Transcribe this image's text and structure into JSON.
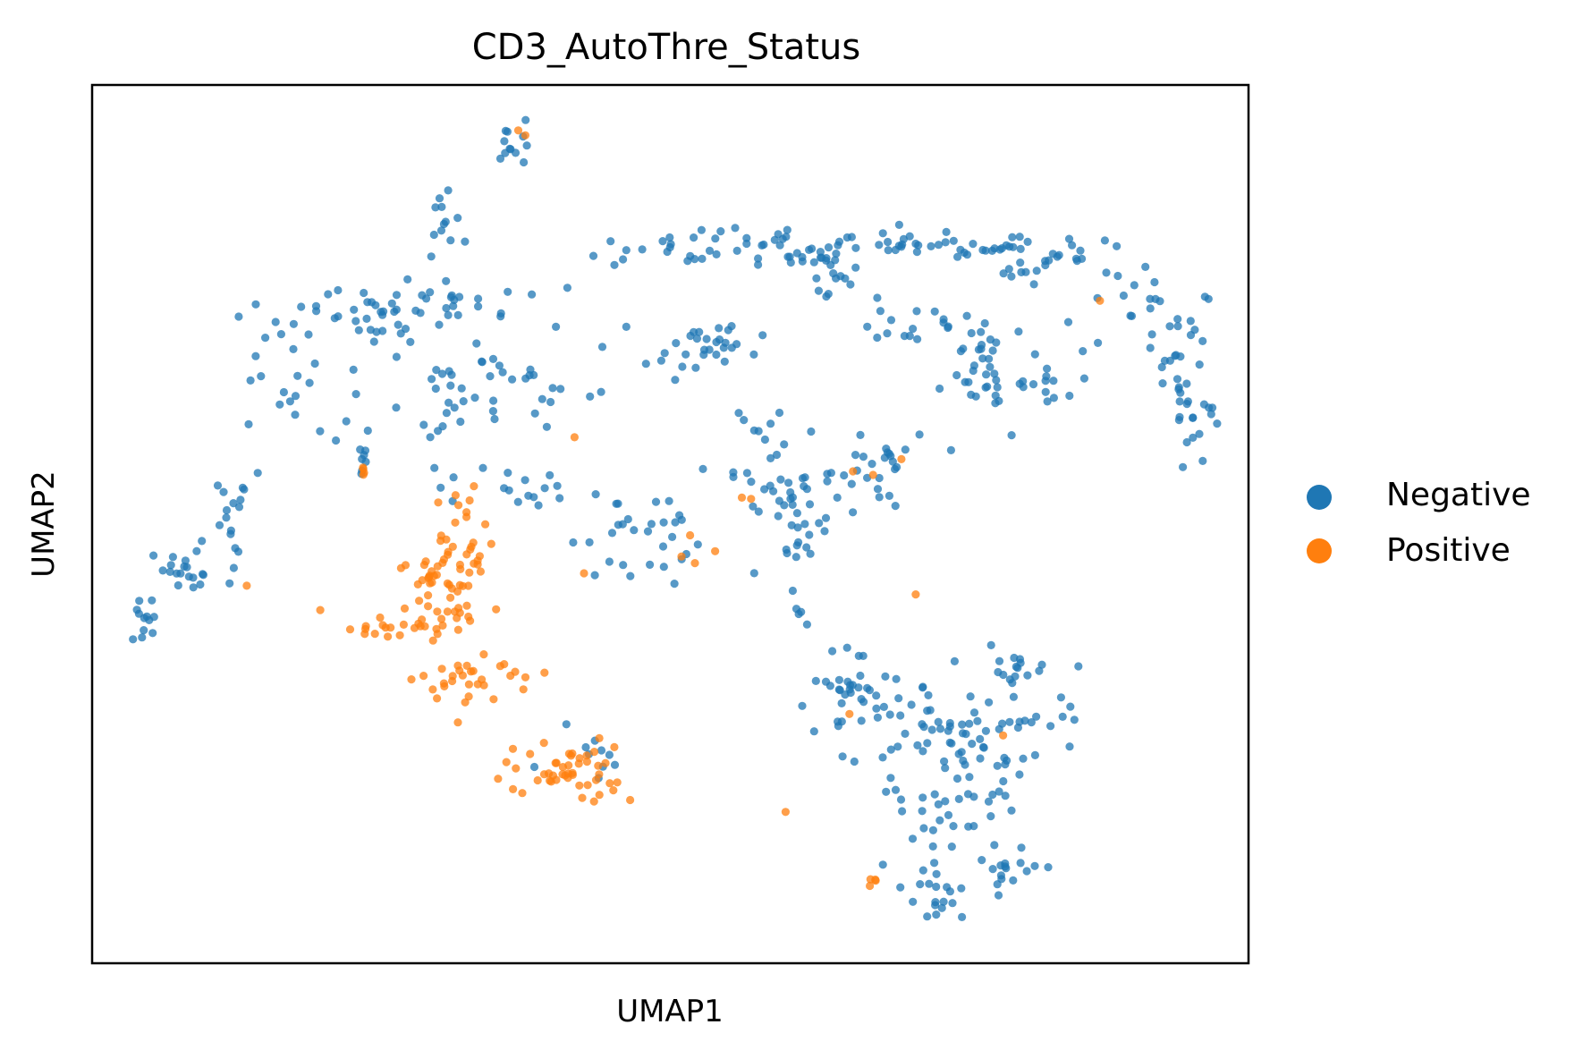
{
  "chart_data": {
    "type": "scatter",
    "title": "CD3_AutoThre_Status",
    "xlabel": "UMAP1",
    "ylabel": "UMAP2",
    "xlim": [
      0,
      100
    ],
    "ylim": [
      0,
      100
    ],
    "axis_ticks": false,
    "grid": false,
    "legend_position": "right",
    "series": [
      {
        "name": "Negative",
        "color": "#1f77b4",
        "clusters": [
          {
            "center": [
              4.8,
              39.0
            ],
            "spread": [
              1.0,
              1.4
            ],
            "n": 12
          },
          {
            "center": [
              7.5,
              44.5
            ],
            "spread": [
              2.0,
              1.2
            ],
            "n": 20
          },
          {
            "center": [
              12.5,
              50.0
            ],
            "spread": [
              0.9,
              3.0
            ],
            "n": 16
          },
          {
            "center": [
              17.0,
              68.0
            ],
            "spread": [
              2.5,
              4.0
            ],
            "n": 26
          },
          {
            "center": [
              24.0,
              72.5
            ],
            "spread": [
              2.5,
              1.8
            ],
            "n": 26
          },
          {
            "center": [
              31.0,
              75.5
            ],
            "spread": [
              3.8,
              1.2
            ],
            "n": 26
          },
          {
            "center": [
              31.5,
              64.0
            ],
            "spread": [
              1.6,
              5.5
            ],
            "n": 26
          },
          {
            "center": [
              30.5,
              84.5
            ],
            "spread": [
              1.2,
              2.0
            ],
            "n": 12
          },
          {
            "center": [
              36.5,
              93.0
            ],
            "spread": [
              0.7,
              1.5
            ],
            "n": 12
          },
          {
            "center": [
              23.5,
              58.5
            ],
            "spread": [
              0.4,
              2.0
            ],
            "n": 8
          },
          {
            "center": [
              38.5,
              54.5
            ],
            "spread": [
              1.8,
              1.2
            ],
            "n": 12
          },
          {
            "center": [
              38.0,
              66.0
            ],
            "spread": [
              3.0,
              3.5
            ],
            "n": 24
          },
          {
            "center": [
              46.5,
              49.0
            ],
            "spread": [
              2.5,
              3.0
            ],
            "n": 30
          },
          {
            "center": [
              53.0,
              70.0
            ],
            "spread": [
              2.5,
              1.5
            ],
            "n": 30
          },
          {
            "center": [
              53.5,
              81.5
            ],
            "spread": [
              6.0,
              1.0
            ],
            "n": 34
          },
          {
            "center": [
              60.5,
              81.0
            ],
            "spread": [
              4.0,
              1.0
            ],
            "n": 20
          },
          {
            "center": [
              64.0,
              78.0
            ],
            "spread": [
              1.5,
              2.0
            ],
            "n": 16
          },
          {
            "center": [
              59.0,
              56.0
            ],
            "spread": [
              2.5,
              4.0
            ],
            "n": 34
          },
          {
            "center": [
              61.0,
              49.0
            ],
            "spread": [
              1.5,
              3.5
            ],
            "n": 24
          },
          {
            "center": [
              67.0,
              56.0
            ],
            "spread": [
              2.5,
              2.5
            ],
            "n": 26
          },
          {
            "center": [
              71.0,
              82.0
            ],
            "spread": [
              3.0,
              0.7
            ],
            "n": 18
          },
          {
            "center": [
              77.0,
              81.5
            ],
            "spread": [
              3.0,
              0.8
            ],
            "n": 18
          },
          {
            "center": [
              83.0,
              80.0
            ],
            "spread": [
              3.0,
              1.2
            ],
            "n": 22
          },
          {
            "center": [
              90.0,
              75.5
            ],
            "spread": [
              2.5,
              2.0
            ],
            "n": 18
          },
          {
            "center": [
              94.0,
              69.0
            ],
            "spread": [
              1.2,
              3.0
            ],
            "n": 20
          },
          {
            "center": [
              95.5,
              62.5
            ],
            "spread": [
              1.0,
              2.0
            ],
            "n": 18
          },
          {
            "center": [
              72.5,
              72.0
            ],
            "spread": [
              3.0,
              1.2
            ],
            "n": 18
          },
          {
            "center": [
              77.5,
              69.5
            ],
            "spread": [
              2.5,
              2.0
            ],
            "n": 16
          },
          {
            "center": [
              82.0,
              66.5
            ],
            "spread": [
              2.5,
              2.5
            ],
            "n": 20
          },
          {
            "center": [
              76.5,
              64.5
            ],
            "spread": [
              1.5,
              1.2
            ],
            "n": 10
          },
          {
            "center": [
              64.5,
              30.0
            ],
            "spread": [
              1.8,
              3.0
            ],
            "n": 22
          },
          {
            "center": [
              68.0,
              28.0
            ],
            "spread": [
              3.0,
              2.5
            ],
            "n": 28
          },
          {
            "center": [
              73.5,
              24.5
            ],
            "spread": [
              4.0,
              3.0
            ],
            "n": 34
          },
          {
            "center": [
              79.0,
              25.0
            ],
            "spread": [
              3.5,
              3.5
            ],
            "n": 30
          },
          {
            "center": [
              80.0,
              34.0
            ],
            "spread": [
              2.5,
              1.5
            ],
            "n": 18
          },
          {
            "center": [
              74.0,
              15.5
            ],
            "spread": [
              3.0,
              3.0
            ],
            "n": 30
          },
          {
            "center": [
              73.5,
              7.5
            ],
            "spread": [
              1.5,
              1.5
            ],
            "n": 16
          },
          {
            "center": [
              79.5,
              10.5
            ],
            "spread": [
              1.5,
              1.5
            ],
            "n": 14
          },
          {
            "center": [
              43.0,
              25.0
            ],
            "spread": [
              2.0,
              1.5
            ],
            "n": 10
          }
        ]
      },
      {
        "name": "Positive",
        "color": "#ff7f0e",
        "clusters": [
          {
            "center": [
              30.5,
              42.0
            ],
            "spread": [
              2.0,
              3.5
            ],
            "n": 40
          },
          {
            "center": [
              32.0,
              47.5
            ],
            "spread": [
              1.5,
              4.0
            ],
            "n": 34
          },
          {
            "center": [
              25.0,
              38.5
            ],
            "spread": [
              2.5,
              0.8
            ],
            "n": 16
          },
          {
            "center": [
              31.5,
              32.5
            ],
            "spread": [
              1.8,
              1.5
            ],
            "n": 24
          },
          {
            "center": [
              37.0,
              32.5
            ],
            "spread": [
              2.0,
              1.0
            ],
            "n": 8
          },
          {
            "center": [
              40.5,
              22.5
            ],
            "spread": [
              2.5,
              1.8
            ],
            "n": 36
          },
          {
            "center": [
              44.5,
              20.5
            ],
            "spread": [
              2.0,
              1.5
            ],
            "n": 12
          },
          {
            "center": [
              23.5,
              56.0
            ],
            "spread": [
              0.3,
              0.3
            ],
            "n": 4
          },
          {
            "center": [
              13.5,
              43.0
            ],
            "spread": [
              0.2,
              0.2
            ],
            "n": 1
          },
          {
            "center": [
              52.0,
              46.5
            ],
            "spread": [
              1.5,
              1.0
            ],
            "n": 4
          },
          {
            "center": [
              42.5,
              44.5
            ],
            "spread": [
              0.2,
              0.2
            ],
            "n": 1
          },
          {
            "center": [
              67.5,
              56.0
            ],
            "spread": [
              1.0,
              0.8
            ],
            "n": 3
          },
          {
            "center": [
              60.0,
              17.0
            ],
            "spread": [
              0.2,
              0.2
            ],
            "n": 1
          },
          {
            "center": [
              67.5,
              9.5
            ],
            "spread": [
              0.6,
              0.3
            ],
            "n": 4
          },
          {
            "center": [
              71.5,
              42.0
            ],
            "spread": [
              0.2,
              0.2
            ],
            "n": 1
          },
          {
            "center": [
              87.5,
              75.5
            ],
            "spread": [
              0.2,
              0.2
            ],
            "n": 1
          },
          {
            "center": [
              78.5,
              26.0
            ],
            "spread": [
              0.2,
              0.2
            ],
            "n": 1
          },
          {
            "center": [
              65.5,
              28.5
            ],
            "spread": [
              0.2,
              0.2
            ],
            "n": 1
          },
          {
            "center": [
              57.0,
              53.0
            ],
            "spread": [
              0.3,
              0.3
            ],
            "n": 2
          },
          {
            "center": [
              42.0,
              60.0
            ],
            "spread": [
              0.2,
              0.2
            ],
            "n": 1
          },
          {
            "center": [
              37.0,
              94.5
            ],
            "spread": [
              0.3,
              0.3
            ],
            "n": 2
          }
        ]
      }
    ]
  }
}
